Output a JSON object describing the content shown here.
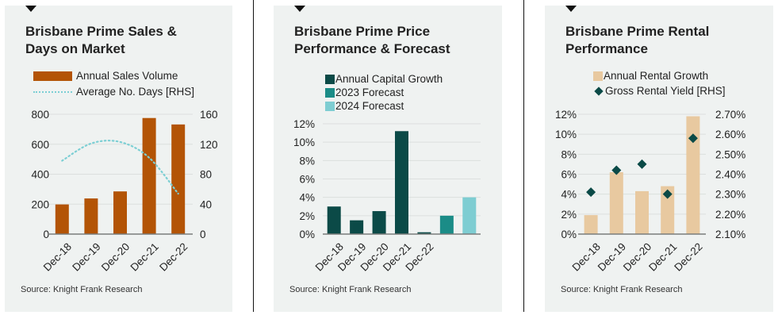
{
  "panels": [
    {
      "title_lines": [
        "Brisbane Prime Sales &",
        "Days on Market"
      ],
      "legend": [
        "Annual Sales Volume",
        "Average No. Days [RHS]"
      ],
      "source": "Source: Knight Frank Research"
    },
    {
      "title_lines": [
        "Brisbane Prime Price",
        "Performance & Forecast"
      ],
      "legend": [
        "Annual Capital Growth",
        "2023 Forecast",
        "2024 Forecast"
      ],
      "source": "Source: Knight Frank Research"
    },
    {
      "title_lines": [
        "Brisbane Prime Rental",
        "Performance"
      ],
      "legend": [
        "Annual Rental Growth",
        "Gross Rental Yield [RHS]"
      ],
      "source": "Source: Knight Frank Research"
    }
  ],
  "colors": {
    "sales_bar": "#b35406",
    "days_line": "#7ccfd4",
    "capital_growth": "#0b4a47",
    "forecast_2023": "#1b8c87",
    "forecast_2024": "#7ecdd2",
    "rental_growth": "#e8c9a0",
    "rental_yield": "#0b4a47"
  },
  "chart_data": [
    {
      "type": "bar",
      "title": "Brisbane Prime Sales & Days on Market",
      "categories": [
        "Dec-18",
        "Dec-19",
        "Dec-20",
        "Dec-21",
        "Dec-22"
      ],
      "series": [
        {
          "name": "Annual Sales Volume",
          "type": "bar",
          "axis": "left",
          "values": [
            198,
            238,
            285,
            775,
            732
          ]
        },
        {
          "name": "Average No. Days [RHS]",
          "type": "line",
          "axis": "right",
          "style": "dotted",
          "values": [
            98,
            121,
            123,
            102,
            54
          ]
        }
      ],
      "ylim": [
        0,
        800
      ],
      "yticks": [
        "0",
        "200",
        "400",
        "600",
        "800"
      ],
      "ylim_right": [
        0,
        160
      ],
      "yticks_right": [
        "0",
        "40",
        "80",
        "120",
        "160"
      ],
      "grid": true,
      "legend_position": "top-left"
    },
    {
      "type": "bar",
      "title": "Brisbane Prime Price Performance & Forecast",
      "categories": [
        "Dec-18",
        "Dec-19",
        "Dec-20",
        "Dec-21",
        "Dec-22",
        "",
        ""
      ],
      "series": [
        {
          "name": "Annual Capital Growth",
          "values": [
            3.0,
            1.5,
            2.5,
            11.2,
            0.2,
            null,
            null
          ]
        },
        {
          "name": "2023 Forecast",
          "values": [
            null,
            null,
            null,
            null,
            null,
            2.0,
            null
          ]
        },
        {
          "name": "2024 Forecast",
          "values": [
            null,
            null,
            null,
            null,
            null,
            null,
            4.0
          ]
        }
      ],
      "ylim": [
        0,
        12
      ],
      "yticks": [
        "0%",
        "2%",
        "4%",
        "6%",
        "8%",
        "10%",
        "12%"
      ],
      "grid": true,
      "legend_position": "top-left"
    },
    {
      "type": "bar",
      "title": "Brisbane Prime Rental Performance",
      "categories": [
        "Dec-18",
        "Dec-19",
        "Dec-20",
        "Dec-21",
        "Dec-22"
      ],
      "series": [
        {
          "name": "Annual Rental Growth",
          "type": "bar",
          "axis": "left",
          "values": [
            1.9,
            6.2,
            4.3,
            4.8,
            11.8
          ]
        },
        {
          "name": "Gross Rental Yield [RHS]",
          "type": "scatter",
          "marker": "diamond",
          "axis": "right",
          "values": [
            2.31,
            2.42,
            2.45,
            2.3,
            2.58
          ]
        }
      ],
      "ylim": [
        0,
        12
      ],
      "yticks": [
        "0%",
        "2%",
        "4%",
        "6%",
        "8%",
        "10%",
        "12%"
      ],
      "ylim_right": [
        2.1,
        2.7
      ],
      "yticks_right": [
        "2.10%",
        "2.20%",
        "2.30%",
        "2.40%",
        "2.50%",
        "2.60%",
        "2.70%"
      ],
      "grid": true,
      "legend_position": "top-left"
    }
  ]
}
